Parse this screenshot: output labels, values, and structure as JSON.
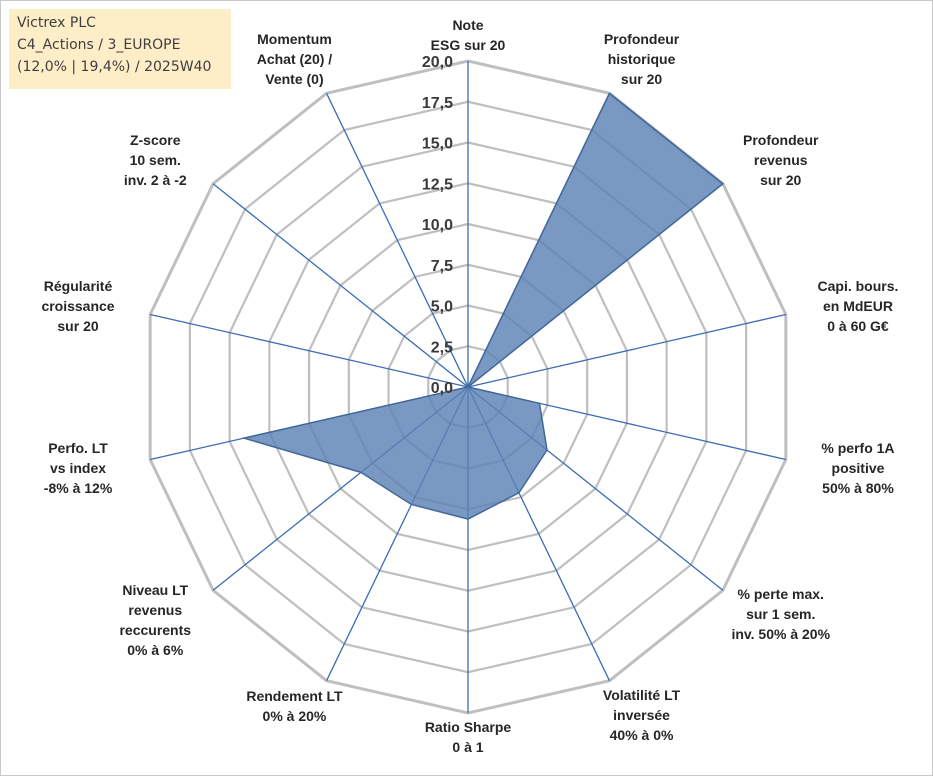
{
  "info_box": {
    "line1": "Victrex PLC",
    "line2": "C4_Actions / 3_EUROPE",
    "line3": "(12,0% | 19,4%) / 2025W40"
  },
  "chart_data": {
    "type": "radar",
    "title": "",
    "rlim": [
      0,
      20
    ],
    "ticks": [
      "0,0",
      "2,5",
      "5,0",
      "7,5",
      "10,0",
      "12,5",
      "15,0",
      "17,5",
      "20,0"
    ],
    "tick_values": [
      0,
      2.5,
      5,
      7.5,
      10,
      12.5,
      15,
      17.5,
      20
    ],
    "grid": true,
    "colors": {
      "fill": "#5b82b6",
      "stroke": "#44689a",
      "grid": "#bfbfbf",
      "spoke": "#3b6cb5"
    },
    "axes": [
      {
        "label": [
          "Note",
          "ESG sur 20"
        ],
        "value": 0
      },
      {
        "label": [
          "Profondeur",
          "historique",
          "sur 20"
        ],
        "value": 20
      },
      {
        "label": [
          "Profondeur",
          "revenus",
          "sur 20"
        ],
        "value": 20
      },
      {
        "label": [
          "Capi. bours.",
          "en MdEUR",
          "0 à 60 G€"
        ],
        "value": 0
      },
      {
        "label": [
          "% perfo 1A",
          "positive",
          "50% à 80%"
        ],
        "value": 4.5
      },
      {
        "label": [
          "% perte max.",
          "sur 1 sem.",
          "inv. 50% à 20%"
        ],
        "value": 6.2
      },
      {
        "label": [
          "Volatilité LT",
          "inversée",
          "40% à 0%"
        ],
        "value": 7.2
      },
      {
        "label": [
          "Ratio Sharpe",
          "0 à 1"
        ],
        "value": 8.1
      },
      {
        "label": [
          "Rendement LT",
          "0% à 20%"
        ],
        "value": 8.0
      },
      {
        "label": [
          "Niveau LT",
          "revenus",
          "reccurents",
          "0% à 6%"
        ],
        "value": 8.4
      },
      {
        "label": [
          "Perfo. LT",
          "vs index",
          "-8% à 12%"
        ],
        "value": 14.1
      },
      {
        "label": [
          "Régularité",
          "croissance",
          "sur 20"
        ],
        "value": 0
      },
      {
        "label": [
          "Z-score",
          "10 sem.",
          "inv. 2 à -2"
        ],
        "value": 0
      },
      {
        "label": [
          "Momentum",
          "Achat (20) /",
          "Vente (0)"
        ],
        "value": 0
      }
    ]
  }
}
